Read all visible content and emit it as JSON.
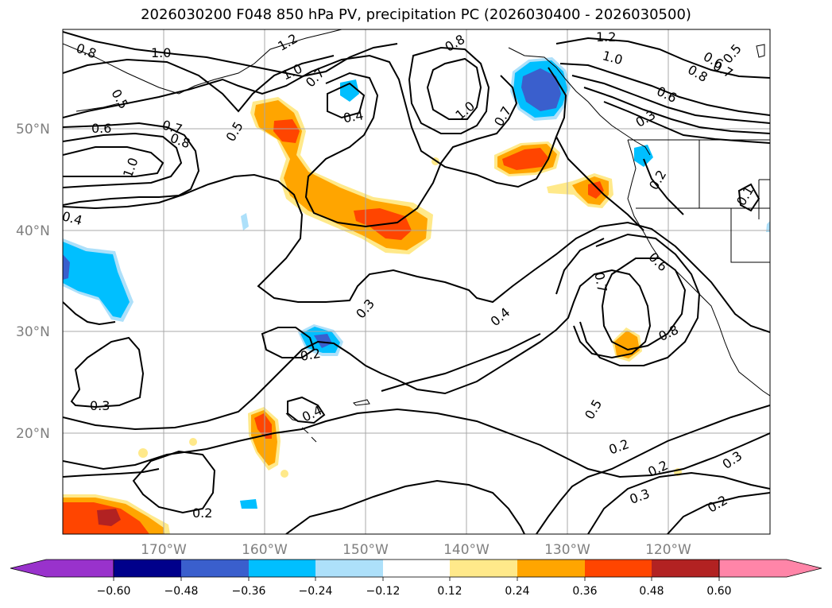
{
  "title": "2026030200 F048 850 hPa PV, precipitation PC (2026030400 - 2026030500)",
  "latitude_labels": [
    "50°N",
    "40°N",
    "30°N",
    "20°N"
  ],
  "longitude_labels": [
    "170°W",
    "160°W",
    "150°W",
    "140°W",
    "130°W",
    "120°W"
  ],
  "colorbar": {
    "tick_labels": [
      "−0.60",
      "−0.48",
      "−0.36",
      "−0.24",
      "−0.12",
      "0.12",
      "0.24",
      "0.36",
      "0.48",
      "0.60"
    ],
    "colors": [
      "#9932CC",
      "#00008B",
      "#3A5FCD",
      "#00BFFF",
      "#ADE0FA",
      "#FFFFFF",
      "#FFE98A",
      "#FFA500",
      "#FF4500",
      "#B22222",
      "#FF85A8"
    ]
  },
  "contour_labels": [
    "0.8",
    "1.0",
    "1.2",
    "1.0",
    "0.7",
    "0.5",
    "0.6",
    "0.7",
    "0.8",
    "0.5",
    "1.0",
    "0.4",
    "0.4",
    "0.8",
    "1.0",
    "0.7",
    "1.2",
    "1.0",
    "0.6",
    "0.5",
    "0.8",
    "0.7",
    "0.6",
    "0.3",
    "0.2",
    "0.1",
    "0.3",
    "0.2",
    "0.4",
    "0.7",
    "0.6",
    "0.8",
    "0.3",
    "0.2",
    "0.4",
    "0.5",
    "0.2",
    "0.2",
    "0.3",
    "0.3",
    "0.2",
    "0.2"
  ],
  "colors": {
    "contour": "#000000",
    "grid": "#a8a8a8",
    "coastline": "#000000"
  }
}
